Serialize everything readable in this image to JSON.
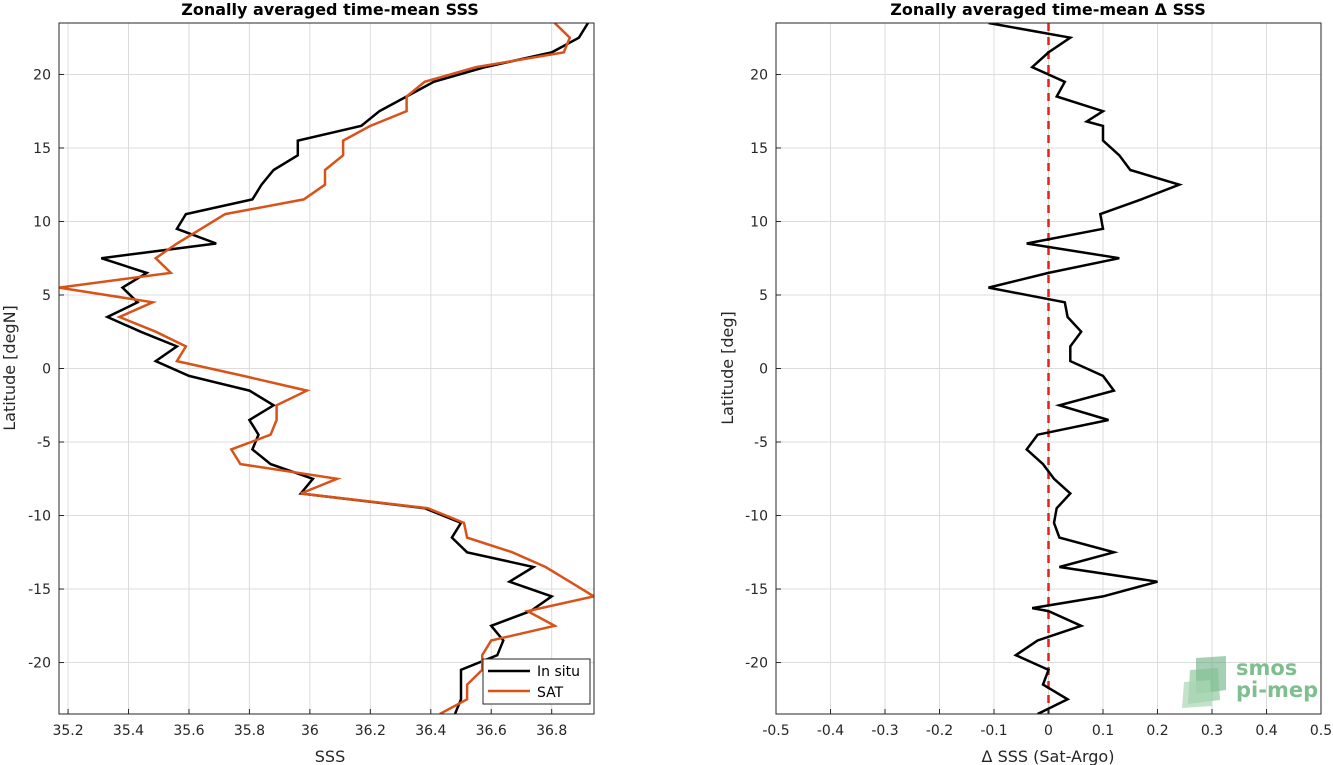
{
  "chart_data": [
    {
      "type": "line",
      "title": "Zonally averaged time-mean SSS",
      "xlabel": "SSS",
      "ylabel": "Latitude [degN]",
      "xlim": [
        35.17,
        36.94
      ],
      "ylim": [
        -23.5,
        23.5
      ],
      "xticks": [
        35.2,
        35.4,
        35.6,
        35.8,
        36,
        36.2,
        36.4,
        36.6,
        36.8
      ],
      "yticks": [
        -20,
        -15,
        -10,
        -5,
        0,
        5,
        10,
        15,
        20
      ],
      "grid": true,
      "legend_position": "bottom-right",
      "series": [
        {
          "name": "In situ",
          "color": "#000000",
          "points": [
            [
              36.48,
              -23.5
            ],
            [
              36.5,
              -22.5
            ],
            [
              36.5,
              -21.5
            ],
            [
              36.5,
              -20.5
            ],
            [
              36.62,
              -19.5
            ],
            [
              36.64,
              -18.5
            ],
            [
              36.6,
              -17.5
            ],
            [
              36.73,
              -16.5
            ],
            [
              36.8,
              -15.5
            ],
            [
              36.66,
              -14.5
            ],
            [
              36.74,
              -13.5
            ],
            [
              36.52,
              -12.5
            ],
            [
              36.47,
              -11.5
            ],
            [
              36.5,
              -10.5
            ],
            [
              36.38,
              -9.5
            ],
            [
              35.97,
              -8.5
            ],
            [
              36.01,
              -7.5
            ],
            [
              35.87,
              -6.5
            ],
            [
              35.81,
              -5.5
            ],
            [
              35.83,
              -4.5
            ],
            [
              35.8,
              -3.5
            ],
            [
              35.88,
              -2.5
            ],
            [
              35.8,
              -1.5
            ],
            [
              35.6,
              -0.5
            ],
            [
              35.49,
              0.5
            ],
            [
              35.56,
              1.5
            ],
            [
              35.44,
              2.5
            ],
            [
              35.33,
              3.5
            ],
            [
              35.43,
              4.5
            ],
            [
              35.38,
              5.5
            ],
            [
              35.46,
              6.5
            ],
            [
              35.31,
              7.5
            ],
            [
              35.69,
              8.5
            ],
            [
              35.56,
              9.5
            ],
            [
              35.59,
              10.5
            ],
            [
              35.81,
              11.5
            ],
            [
              35.84,
              12.5
            ],
            [
              35.88,
              13.5
            ],
            [
              35.96,
              14.5
            ],
            [
              35.96,
              15.5
            ],
            [
              36.17,
              16.5
            ],
            [
              36.23,
              17.5
            ],
            [
              36.32,
              18.5
            ],
            [
              36.41,
              19.5
            ],
            [
              36.58,
              20.5
            ],
            [
              36.8,
              21.5
            ],
            [
              36.89,
              22.5
            ],
            [
              36.92,
              23.5
            ]
          ]
        },
        {
          "name": "SAT",
          "color": "#d95319",
          "points": [
            [
              36.43,
              -23.5
            ],
            [
              36.52,
              -22.5
            ],
            [
              36.52,
              -21.5
            ],
            [
              36.57,
              -20.5
            ],
            [
              36.57,
              -19.5
            ],
            [
              36.6,
              -18.5
            ],
            [
              36.81,
              -17.5
            ],
            [
              36.72,
              -16.5
            ],
            [
              36.94,
              -15.5
            ],
            [
              36.86,
              -14.5
            ],
            [
              36.78,
              -13.5
            ],
            [
              36.67,
              -12.5
            ],
            [
              36.52,
              -11.5
            ],
            [
              36.51,
              -10.5
            ],
            [
              36.39,
              -9.5
            ],
            [
              35.97,
              -8.5
            ],
            [
              36.09,
              -7.5
            ],
            [
              35.77,
              -6.5
            ],
            [
              35.74,
              -5.5
            ],
            [
              35.87,
              -4.5
            ],
            [
              35.89,
              -3.5
            ],
            [
              35.89,
              -2.5
            ],
            [
              35.99,
              -1.5
            ],
            [
              35.78,
              -0.5
            ],
            [
              35.56,
              0.5
            ],
            [
              35.59,
              1.5
            ],
            [
              35.49,
              2.5
            ],
            [
              35.37,
              3.5
            ],
            [
              35.48,
              4.5
            ],
            [
              35.17,
              5.5
            ],
            [
              35.54,
              6.5
            ],
            [
              35.49,
              7.5
            ],
            [
              35.56,
              8.5
            ],
            [
              35.64,
              9.5
            ],
            [
              35.72,
              10.5
            ],
            [
              35.98,
              11.5
            ],
            [
              36.05,
              12.5
            ],
            [
              36.05,
              13.5
            ],
            [
              36.11,
              14.5
            ],
            [
              36.11,
              15.5
            ],
            [
              36.2,
              16.5
            ],
            [
              36.32,
              17.5
            ],
            [
              36.32,
              18.5
            ],
            [
              36.38,
              19.5
            ],
            [
              36.55,
              20.5
            ],
            [
              36.84,
              21.5
            ],
            [
              36.86,
              22.5
            ],
            [
              36.81,
              23.5
            ]
          ]
        }
      ]
    },
    {
      "type": "line",
      "title": "Zonally averaged time-mean Δ SSS",
      "xlabel": "Δ SSS (Sat-Argo)",
      "ylabel": "Latitude [deg]",
      "xlim": [
        -0.5,
        0.5
      ],
      "ylim": [
        -23.5,
        23.5
      ],
      "xticks": [
        -0.5,
        -0.4,
        -0.3,
        -0.2,
        -0.1,
        0,
        0.1,
        0.2,
        0.3,
        0.4,
        0.5
      ],
      "yticks": [
        -20,
        -15,
        -10,
        -5,
        0,
        5,
        10,
        15,
        20
      ],
      "grid": true,
      "reference_line": {
        "x": 0,
        "color": "#e3211c",
        "style": "dashed"
      },
      "series": [
        {
          "name": "",
          "color": "#000000",
          "points": [
            [
              -0.02,
              -23.5
            ],
            [
              0.035,
              -22.5
            ],
            [
              -0.01,
              -21.5
            ],
            [
              0.0,
              -20.5
            ],
            [
              -0.06,
              -19.5
            ],
            [
              -0.02,
              -18.5
            ],
            [
              0.06,
              -17.5
            ],
            [
              0.0,
              -16.5
            ],
            [
              -0.03,
              -16.3
            ],
            [
              0.1,
              -15.5
            ],
            [
              0.2,
              -14.5
            ],
            [
              0.02,
              -13.5
            ],
            [
              0.12,
              -12.5
            ],
            [
              0.02,
              -11.5
            ],
            [
              0.01,
              -10.5
            ],
            [
              0.015,
              -9.5
            ],
            [
              0.04,
              -8.5
            ],
            [
              0.01,
              -7.5
            ],
            [
              -0.01,
              -6.5
            ],
            [
              -0.04,
              -5.5
            ],
            [
              -0.02,
              -4.5
            ],
            [
              0.11,
              -3.5
            ],
            [
              0.02,
              -2.5
            ],
            [
              0.12,
              -1.5
            ],
            [
              0.1,
              -0.5
            ],
            [
              0.04,
              0.5
            ],
            [
              0.04,
              1.5
            ],
            [
              0.06,
              2.5
            ],
            [
              0.035,
              3.5
            ],
            [
              0.03,
              4.5
            ],
            [
              -0.11,
              5.5
            ],
            [
              0.0,
              6.5
            ],
            [
              0.13,
              7.5
            ],
            [
              -0.04,
              8.5
            ],
            [
              0.1,
              9.5
            ],
            [
              0.095,
              10.5
            ],
            [
              0.17,
              11.5
            ],
            [
              0.24,
              12.5
            ],
            [
              0.15,
              13.5
            ],
            [
              0.13,
              14.5
            ],
            [
              0.1,
              15.5
            ],
            [
              0.1,
              16.5
            ],
            [
              0.07,
              16.8
            ],
            [
              0.1,
              17.5
            ],
            [
              0.015,
              18.5
            ],
            [
              0.03,
              19.5
            ],
            [
              -0.03,
              20.5
            ],
            [
              0.0,
              21.5
            ],
            [
              0.04,
              22.5
            ],
            [
              -0.11,
              23.5
            ]
          ]
        }
      ]
    }
  ],
  "logo": {
    "line1": "smos",
    "line2": "pi-mep",
    "color": "#7fbf8f"
  }
}
